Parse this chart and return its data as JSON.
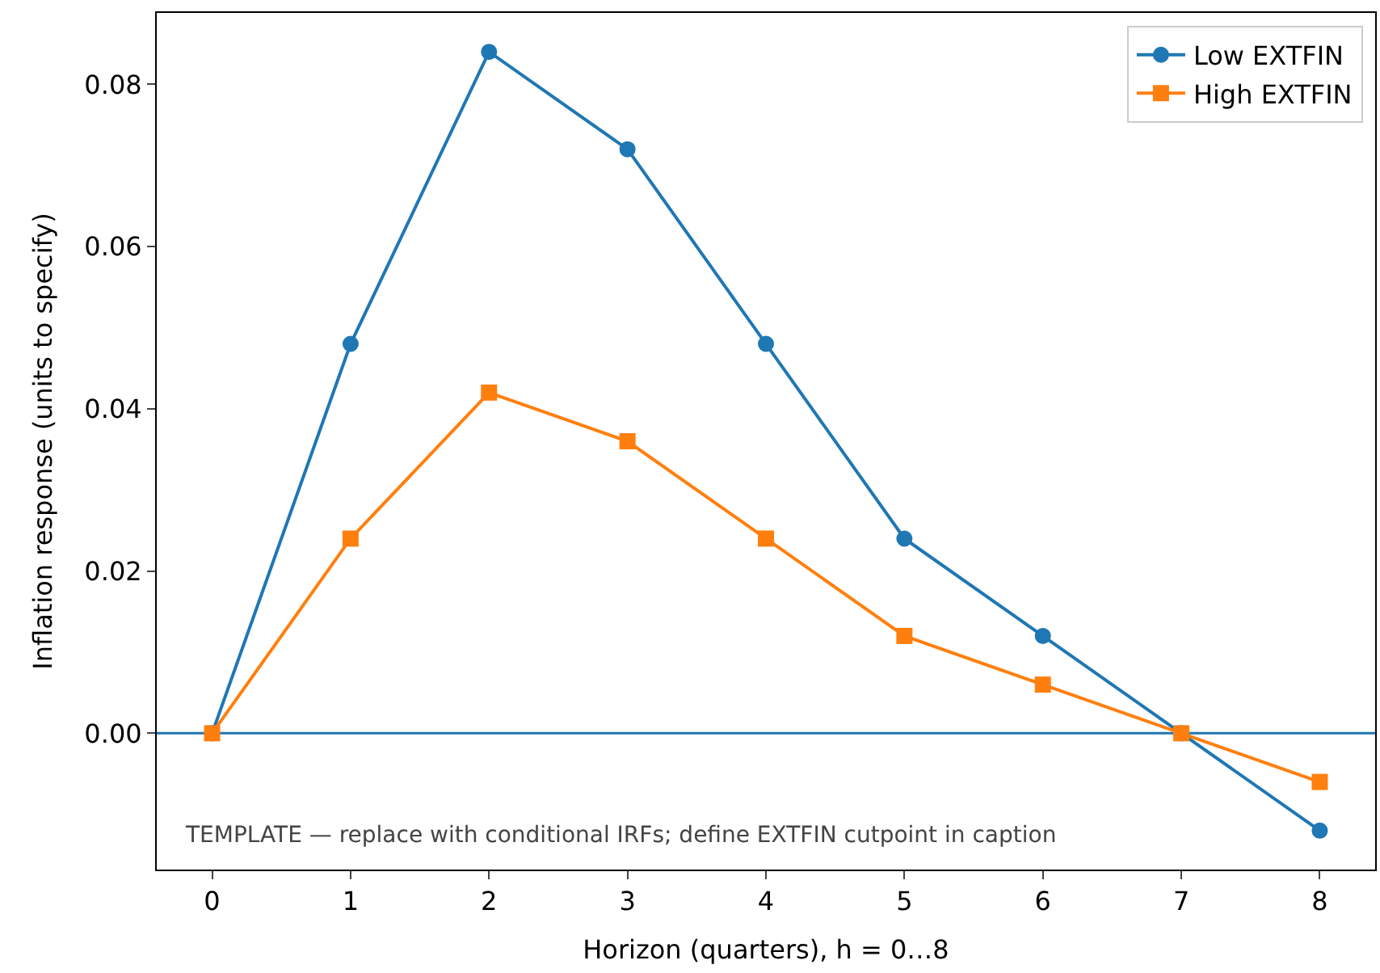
{
  "chart_data": {
    "type": "line",
    "xlabel": "Horizon (quarters), h = 0…8",
    "ylabel": "Inflation response (units to specify)",
    "x": [
      0,
      1,
      2,
      3,
      4,
      5,
      6,
      7,
      8
    ],
    "series": [
      {
        "name": "Low EXTFIN",
        "color": "#1f77b4",
        "marker": "circle",
        "values": [
          0,
          0.048,
          0.084,
          0.072,
          0.048,
          0.024,
          0.012,
          0,
          -0.012
        ]
      },
      {
        "name": "High EXTFIN",
        "color": "#ff7f0e",
        "marker": "square",
        "values": [
          0,
          0.024,
          0.042,
          0.036,
          0.024,
          0.012,
          0.006,
          0,
          -0.006
        ]
      }
    ],
    "xlim": [
      -0.4,
      8.4
    ],
    "ylim": [
      -0.0168,
      0.0888
    ],
    "xticks": [
      0,
      1,
      2,
      3,
      4,
      5,
      6,
      7,
      8
    ],
    "yticks": [
      {
        "value": 0,
        "label": "0.00"
      },
      {
        "value": 0.02,
        "label": "0.02"
      },
      {
        "value": 0.04,
        "label": "0.04"
      },
      {
        "value": 0.06,
        "label": "0.06"
      },
      {
        "value": 0.08,
        "label": "0.08"
      }
    ],
    "ref_lines": [
      {
        "axis": "y",
        "value": 0,
        "color": "#1f77b4"
      }
    ],
    "annotations": [
      "TEMPLATE — replace with conditional IRFs; define EXTFIN cutpoint in caption"
    ],
    "grid": false,
    "legend": "top right",
    "line_style": "solid"
  }
}
